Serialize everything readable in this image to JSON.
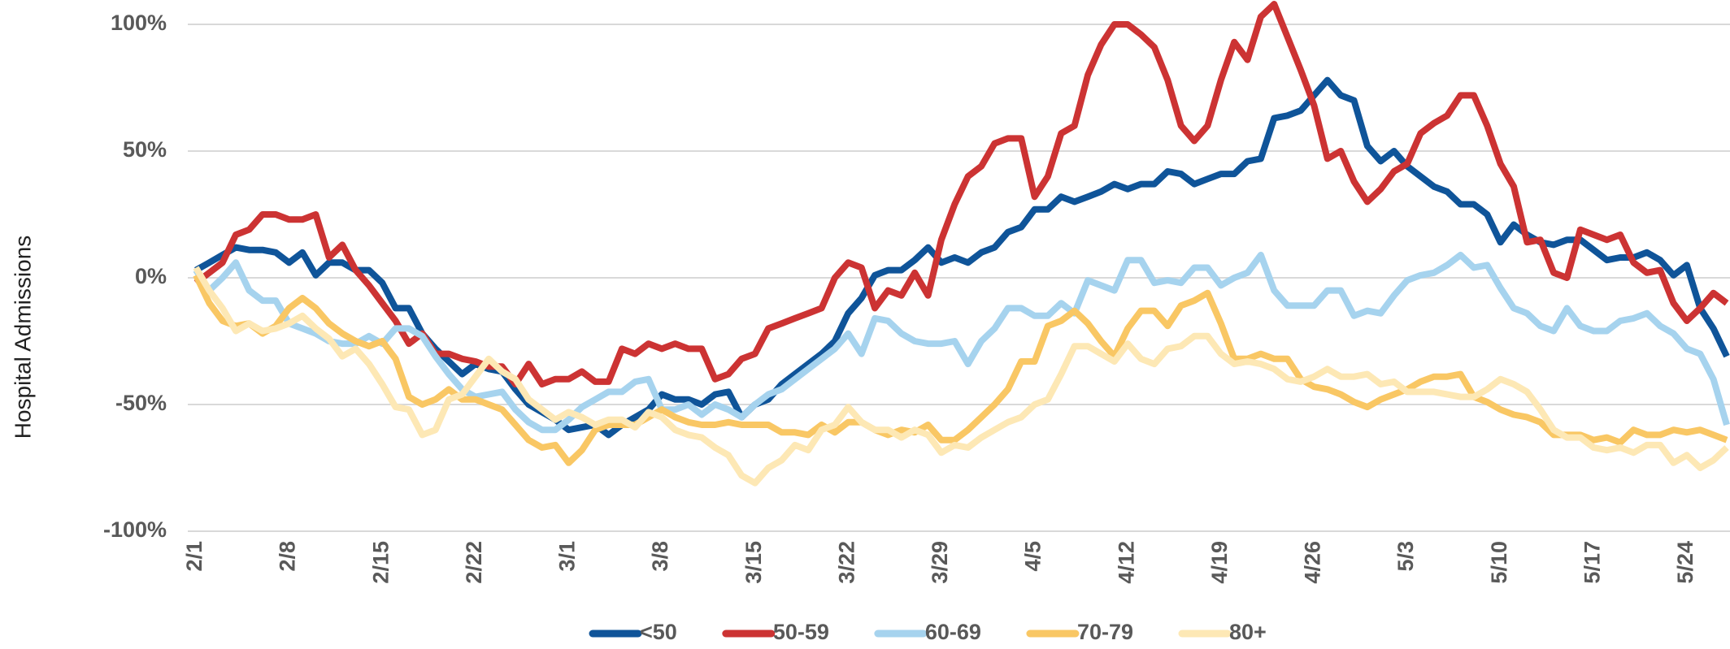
{
  "chart_data": {
    "type": "line",
    "y_label": "Hospital Admissions",
    "categories": [
      "2/1",
      null,
      null,
      null,
      null,
      null,
      null,
      "2/8",
      null,
      null,
      null,
      null,
      null,
      null,
      "2/15",
      null,
      null,
      null,
      null,
      null,
      null,
      "2/22",
      null,
      null,
      null,
      null,
      null,
      null,
      "3/1",
      null,
      null,
      null,
      null,
      null,
      null,
      "3/8",
      null,
      null,
      null,
      null,
      null,
      null,
      "3/15",
      null,
      null,
      null,
      null,
      null,
      null,
      "3/22",
      null,
      null,
      null,
      null,
      null,
      null,
      "3/29",
      null,
      null,
      null,
      null,
      null,
      null,
      "4/5",
      null,
      null,
      null,
      null,
      null,
      null,
      "4/12",
      null,
      null,
      null,
      null,
      null,
      null,
      "4/19",
      null,
      null,
      null,
      null,
      null,
      null,
      "4/26",
      null,
      null,
      null,
      null,
      null,
      null,
      "5/3",
      null,
      null,
      null,
      null,
      null,
      null,
      "5/10",
      null,
      null,
      null,
      null,
      null,
      null,
      "5/17",
      null,
      null,
      null,
      null,
      null,
      null,
      "5/24",
      null,
      null,
      null
    ],
    "series": [
      {
        "name": "<50",
        "color": "#0f5499",
        "values": [
          3,
          6,
          9,
          12,
          11,
          11,
          10,
          6,
          10,
          1,
          6,
          6,
          3,
          3,
          -2,
          -12,
          -12,
          -22,
          -28,
          -33,
          -38,
          -34,
          -36,
          -37,
          -44,
          -50,
          -53,
          -56,
          -60,
          -59,
          -58,
          -62,
          -58,
          -55,
          -52,
          -46,
          -48,
          -48,
          -50,
          -46,
          -45,
          -55,
          -50,
          -48,
          -42,
          -38,
          -34,
          -30,
          -25,
          -14,
          -8,
          1,
          3,
          3,
          7,
          12,
          6,
          8,
          6,
          10,
          12,
          18,
          20,
          27,
          27,
          32,
          30,
          32,
          34,
          37,
          35,
          37,
          37,
          42,
          41,
          37,
          39,
          41,
          41,
          46,
          47,
          63,
          64,
          66,
          72,
          78,
          72,
          70,
          52,
          46,
          50,
          44,
          40,
          36,
          34,
          29,
          29,
          25,
          14,
          21,
          17,
          14,
          13,
          15,
          15,
          11,
          7,
          8,
          8,
          10,
          7,
          1,
          5,
          -12,
          -20,
          -31
        ]
      },
      {
        "name": "50-59",
        "color": "#cc3333",
        "values": [
          -2,
          2,
          6,
          17,
          19,
          25,
          25,
          23,
          23,
          25,
          8,
          13,
          3,
          -3,
          -10,
          -17,
          -26,
          -22,
          -30,
          -30,
          -32,
          -33,
          -35,
          -35,
          -42,
          -34,
          -42,
          -40,
          -40,
          -37,
          -41,
          -41,
          -28,
          -30,
          -26,
          -28,
          -26,
          -28,
          -28,
          -40,
          -38,
          -32,
          -30,
          -20,
          -18,
          -16,
          -14,
          -12,
          0,
          6,
          4,
          -12,
          -5,
          -7,
          2,
          -7,
          15,
          29,
          40,
          44,
          53,
          55,
          55,
          32,
          40,
          57,
          60,
          80,
          92,
          100,
          100,
          96,
          91,
          78,
          60,
          54,
          60,
          78,
          93,
          86,
          103,
          108,
          95,
          82,
          68,
          47,
          50,
          38,
          30,
          35,
          42,
          45,
          57,
          61,
          64,
          72,
          72,
          60,
          45,
          36,
          14,
          15,
          2,
          0,
          19,
          17,
          15,
          17,
          6,
          2,
          3,
          -10,
          -17,
          -12,
          -6,
          -10
        ]
      },
      {
        "name": "60-69",
        "color": "#a6d3ee",
        "values": [
          3,
          -5,
          0,
          6,
          -5,
          -9,
          -9,
          -18,
          -20,
          -22,
          -25,
          -26,
          -26,
          -23,
          -26,
          -20,
          -20,
          -23,
          -31,
          -38,
          -44,
          -47,
          -46,
          -45,
          -52,
          -57,
          -60,
          -60,
          -56,
          -51,
          -48,
          -45,
          -45,
          -41,
          -40,
          -52,
          -52,
          -50,
          -54,
          -50,
          -52,
          -55,
          -50,
          -46,
          -44,
          -40,
          -36,
          -32,
          -28,
          -22,
          -30,
          -16,
          -17,
          -22,
          -25,
          -26,
          -26,
          -25,
          -34,
          -25,
          -20,
          -12,
          -12,
          -15,
          -15,
          -10,
          -14,
          -1,
          -3,
          -5,
          7,
          7,
          -2,
          -1,
          -2,
          4,
          4,
          -3,
          0,
          2,
          9,
          -5,
          -11,
          -11,
          -11,
          -5,
          -5,
          -15,
          -13,
          -14,
          -7,
          -1,
          1,
          2,
          5,
          9,
          4,
          5,
          -4,
          -12,
          -14,
          -19,
          -21,
          -12,
          -19,
          -21,
          -21,
          -17,
          -16,
          -14,
          -19,
          -22,
          -28,
          -30,
          -40,
          -58
        ]
      },
      {
        "name": "70-79",
        "color": "#f9c764",
        "values": [
          1,
          -10,
          -17,
          -19,
          -18,
          -22,
          -19,
          -12,
          -8,
          -12,
          -18,
          -22,
          -25,
          -27,
          -25,
          -32,
          -47,
          -50,
          -48,
          -44,
          -48,
          -48,
          -50,
          -52,
          -58,
          -64,
          -67,
          -66,
          -73,
          -68,
          -60,
          -58,
          -58,
          -58,
          -55,
          -52,
          -55,
          -57,
          -58,
          -58,
          -57,
          -58,
          -58,
          -58,
          -61,
          -61,
          -62,
          -58,
          -61,
          -57,
          -57,
          -60,
          -62,
          -60,
          -61,
          -58,
          -64,
          -64,
          -60,
          -55,
          -50,
          -44,
          -33,
          -33,
          -19,
          -17,
          -13,
          -18,
          -25,
          -31,
          -20,
          -13,
          -13,
          -19,
          -11,
          -9,
          -6,
          -18,
          -32,
          -32,
          -30,
          -32,
          -32,
          -40,
          -43,
          -44,
          -46,
          -49,
          -51,
          -48,
          -46,
          -44,
          -41,
          -39,
          -39,
          -38,
          -47,
          -49,
          -52,
          -54,
          -55,
          -57,
          -62,
          -62,
          -62,
          -64,
          -63,
          -65,
          -60,
          -62,
          -62,
          -60,
          -61,
          -60,
          -62,
          -64
        ]
      },
      {
        "name": "80+",
        "color": "#fde8b5",
        "values": [
          4,
          -5,
          -12,
          -21,
          -18,
          -21,
          -20,
          -18,
          -15,
          -20,
          -24,
          -31,
          -28,
          -34,
          -42,
          -51,
          -52,
          -62,
          -60,
          -48,
          -46,
          -39,
          -32,
          -37,
          -40,
          -48,
          -52,
          -56,
          -53,
          -55,
          -58,
          -56,
          -56,
          -59,
          -53,
          -55,
          -60,
          -62,
          -63,
          -67,
          -70,
          -78,
          -81,
          -75,
          -72,
          -66,
          -68,
          -60,
          -58,
          -51,
          -57,
          -60,
          -60,
          -63,
          -60,
          -62,
          -69,
          -66,
          -67,
          -63,
          -60,
          -57,
          -55,
          -50,
          -48,
          -38,
          -27,
          -27,
          -30,
          -33,
          -26,
          -32,
          -34,
          -28,
          -27,
          -23,
          -23,
          -30,
          -34,
          -33,
          -34,
          -36,
          -40,
          -41,
          -39,
          -36,
          -39,
          -39,
          -38,
          -42,
          -41,
          -45,
          -45,
          -45,
          -46,
          -47,
          -47,
          -44,
          -40,
          -42,
          -45,
          -52,
          -60,
          -63,
          -63,
          -67,
          -68,
          -67,
          -69,
          -66,
          -66,
          -73,
          -70,
          -75,
          -72,
          -67
        ]
      }
    ],
    "ylim": [
      -100,
      100
    ],
    "yticks": [
      {
        "value": -100,
        "label": "-100%"
      },
      {
        "value": -50,
        "label": "-50%"
      },
      {
        "value": 0,
        "label": "0%"
      },
      {
        "value": 50,
        "label": "50%"
      },
      {
        "value": 100,
        "label": "100%"
      }
    ],
    "grid": true,
    "legend": "bottom"
  }
}
